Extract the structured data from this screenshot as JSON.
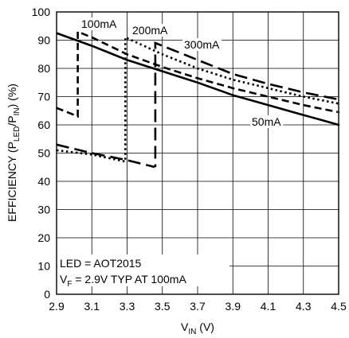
{
  "chart_data": {
    "type": "line",
    "xlabel": {
      "main": "V",
      "sub": "IN",
      "tail": " (V)"
    },
    "ylabel": {
      "p1": "EFFICIENCY (P",
      "s1": "LED",
      "p2": "/P",
      "s2": "IN",
      "p3": ") (%)"
    },
    "xlim": [
      2.9,
      4.5
    ],
    "ylim": [
      0,
      100
    ],
    "xticks": [
      2.9,
      3.1,
      3.3,
      3.5,
      3.7,
      3.9,
      4.1,
      4.3,
      4.5
    ],
    "xtick_labels": [
      "2.9",
      "3.1",
      "3.3",
      "3.5",
      "3.7",
      "3.9",
      "4.1",
      "4.3",
      "4.5"
    ],
    "yticks": [
      0,
      10,
      20,
      30,
      40,
      50,
      60,
      70,
      80,
      90,
      100
    ],
    "ytick_labels": [
      "0",
      "10",
      "20",
      "30",
      "40",
      "50",
      "60",
      "70",
      "80",
      "90",
      "100"
    ],
    "grid": true,
    "series": [
      {
        "name": "50mA",
        "style": "solid",
        "points": [
          [
            2.9,
            92.5
          ],
          [
            3.1,
            88
          ],
          [
            3.3,
            83
          ],
          [
            3.5,
            79
          ],
          [
            3.7,
            75
          ],
          [
            3.9,
            70.5
          ],
          [
            4.1,
            67
          ],
          [
            4.3,
            63.5
          ],
          [
            4.5,
            60
          ]
        ]
      },
      {
        "name": "100mA",
        "style": "dash-short",
        "points": [
          [
            2.9,
            66
          ],
          [
            3.02,
            63
          ],
          [
            3.02,
            93
          ],
          [
            3.1,
            91
          ],
          [
            3.3,
            85
          ],
          [
            3.5,
            80.5
          ],
          [
            3.7,
            76.5
          ],
          [
            3.9,
            73
          ],
          [
            4.1,
            70
          ],
          [
            4.3,
            67
          ],
          [
            4.5,
            64.5
          ]
        ]
      },
      {
        "name": "200mA",
        "style": "dotted",
        "points": [
          [
            2.9,
            51
          ],
          [
            3.1,
            49.5
          ],
          [
            3.29,
            47
          ],
          [
            3.29,
            91
          ],
          [
            3.5,
            85
          ],
          [
            3.7,
            80
          ],
          [
            3.9,
            76
          ],
          [
            4.1,
            73
          ],
          [
            4.3,
            70
          ],
          [
            4.5,
            67.5
          ]
        ]
      },
      {
        "name": "300mA",
        "style": "dash-long",
        "points": [
          [
            2.9,
            53
          ],
          [
            3.1,
            50
          ],
          [
            3.3,
            47.5
          ],
          [
            3.46,
            45
          ],
          [
            3.46,
            89
          ],
          [
            3.7,
            83
          ],
          [
            3.9,
            78
          ],
          [
            4.1,
            74.5
          ],
          [
            4.3,
            71.5
          ],
          [
            4.5,
            69
          ]
        ]
      }
    ],
    "series_labels": [
      {
        "series": "100mA",
        "text": "100mA"
      },
      {
        "series": "200mA",
        "text": "200mA"
      },
      {
        "series": "300mA",
        "text": "300mA"
      },
      {
        "series": "50mA",
        "text": "50mA"
      }
    ],
    "annotation": {
      "line1": "LED = AOT2015",
      "line2_main": "V",
      "line2_sub": "F",
      "line2_tail": " = 2.9V TYP AT 100mA"
    }
  }
}
